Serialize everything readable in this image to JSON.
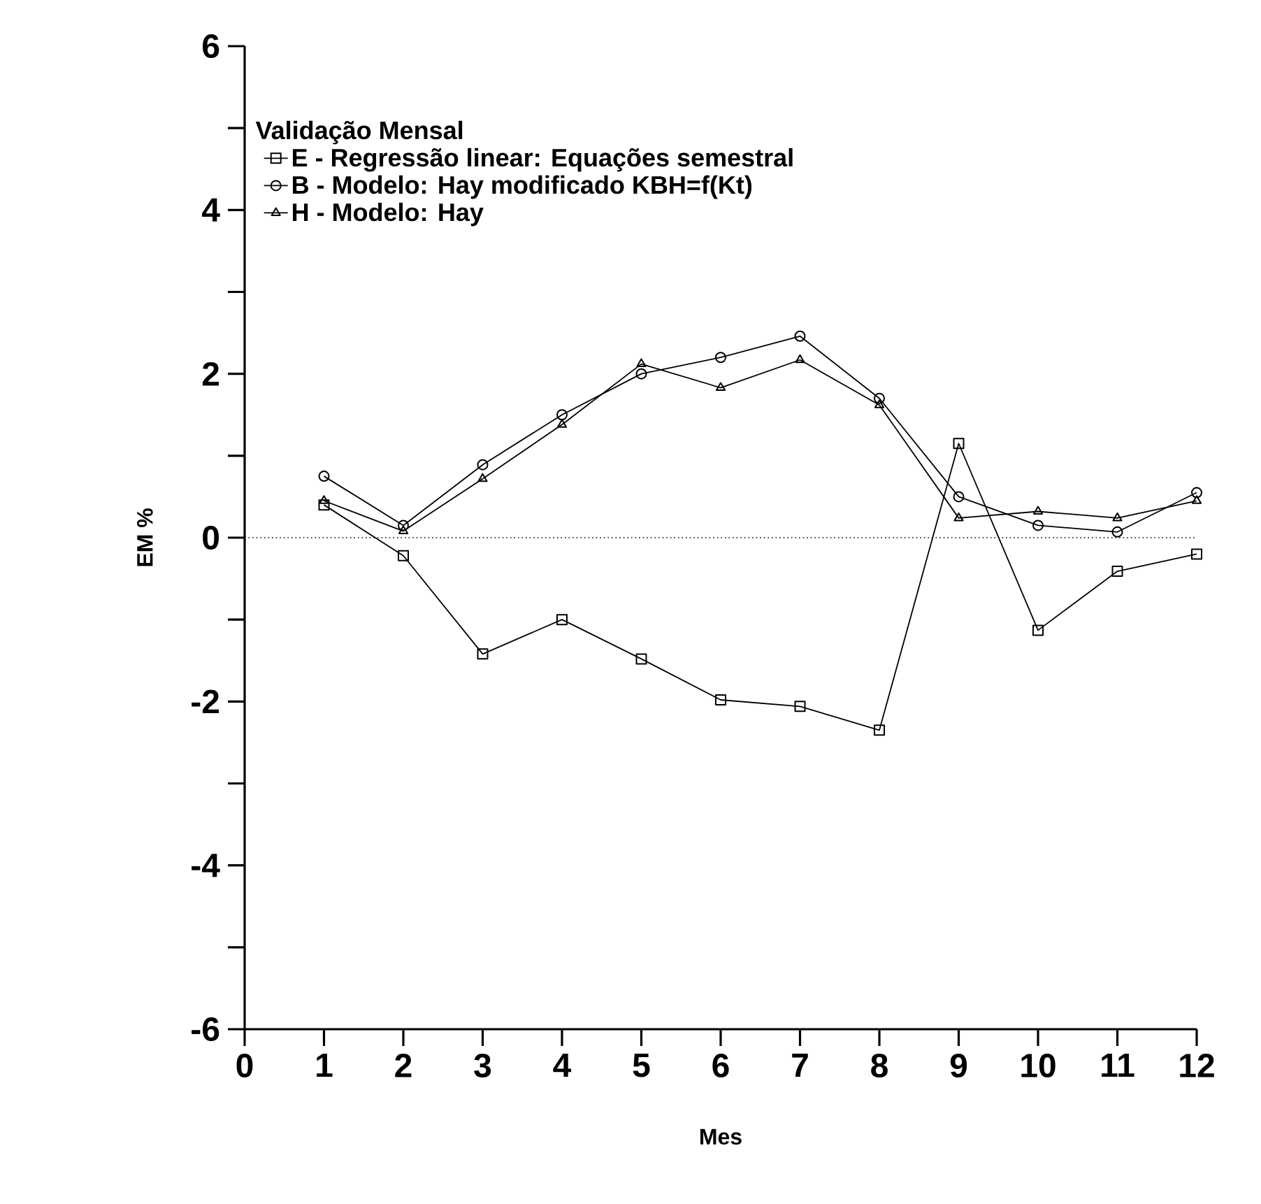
{
  "chart_data": {
    "type": "line",
    "legend_title": "Validação Mensal",
    "xlabel": "Mes",
    "ylabel": "EM %",
    "x": [
      1,
      2,
      3,
      4,
      5,
      6,
      7,
      8,
      9,
      10,
      11,
      12
    ],
    "series": [
      {
        "name": "E - Regressão linear: Equações semestral",
        "color": "#000000",
        "marker": "square",
        "values": [
          0.4,
          -0.22,
          -1.42,
          -1.0,
          -1.48,
          -1.98,
          -2.06,
          -2.35,
          1.15,
          -1.13,
          -0.41,
          -0.2
        ]
      },
      {
        "name": "B - Modelo: Hay modificado KBH=f(Kt)",
        "color": "#000000",
        "marker": "circle",
        "values": [
          0.75,
          0.15,
          0.89,
          1.5,
          2.0,
          2.2,
          2.46,
          1.7,
          0.5,
          0.15,
          0.07,
          0.55
        ]
      },
      {
        "name": "H - Modelo: Hay",
        "color": "#000000",
        "marker": "triangle",
        "values": [
          0.45,
          0.08,
          0.72,
          1.38,
          2.12,
          1.83,
          2.17,
          1.62,
          0.24,
          0.32,
          0.24,
          0.45
        ]
      }
    ],
    "xlim": [
      0,
      12
    ],
    "xticks": [
      0,
      1,
      2,
      3,
      4,
      5,
      6,
      7,
      8,
      9,
      10,
      11,
      12
    ],
    "ylim": [
      -6,
      6
    ],
    "yticks": [
      -6,
      {
        "value": -5,
        "label": null
      },
      -4,
      {
        "value": -3,
        "label": null
      },
      -2,
      {
        "value": -1,
        "label": null
      },
      0,
      {
        "value": 1,
        "label": null
      },
      2,
      {
        "value": 3,
        "label": null
      },
      4,
      {
        "value": 5,
        "label": null
      },
      6
    ],
    "ref_lines": [
      {
        "axis": "y",
        "value": 0,
        "line_style": "dotted"
      }
    ],
    "grid": false,
    "legend": "top left",
    "line_style": "solid"
  }
}
